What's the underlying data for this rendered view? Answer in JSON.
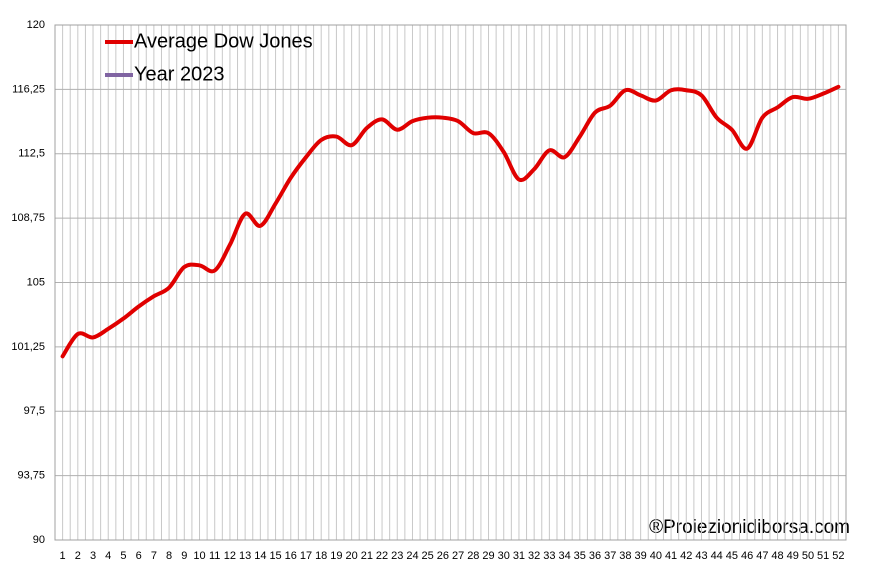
{
  "chart_data": {
    "type": "line",
    "categories": [
      "1",
      "2",
      "3",
      "4",
      "5",
      "6",
      "7",
      "8",
      "9",
      "10",
      "11",
      "12",
      "13",
      "14",
      "15",
      "16",
      "17",
      "18",
      "19",
      "20",
      "21",
      "22",
      "23",
      "24",
      "25",
      "26",
      "27",
      "28",
      "29",
      "30",
      "31",
      "32",
      "33",
      "34",
      "35",
      "36",
      "37",
      "38",
      "39",
      "40",
      "41",
      "42",
      "43",
      "44",
      "45",
      "46",
      "47",
      "48",
      "49",
      "50",
      "51",
      "52"
    ],
    "series": [
      {
        "name": "Average Dow Jones",
        "color": "#e00000",
        "values": [
          100.7,
          102.0,
          101.8,
          102.3,
          102.9,
          103.6,
          104.2,
          104.7,
          105.9,
          106.0,
          105.7,
          107.2,
          109.0,
          108.3,
          109.6,
          111.1,
          112.3,
          113.3,
          113.5,
          113.0,
          114.0,
          114.5,
          113.9,
          114.4,
          114.6,
          114.6,
          114.4,
          113.7,
          113.7,
          112.6,
          111.0,
          111.6,
          112.7,
          112.3,
          113.5,
          114.9,
          115.3,
          116.2,
          115.9,
          115.6,
          116.2,
          116.2,
          115.9,
          114.6,
          113.9,
          112.8,
          114.6,
          115.2,
          115.8,
          115.7,
          116.0,
          116.4
        ]
      },
      {
        "name": "Year 2023",
        "color": "#8064a2",
        "values": [
          null,
          null,
          null,
          null,
          null,
          null,
          null,
          null,
          null,
          null,
          null,
          null,
          null,
          null,
          null,
          null,
          null,
          null,
          null,
          null,
          null,
          null,
          null,
          null,
          null,
          null,
          null,
          null,
          null,
          null,
          null,
          null,
          null,
          null,
          null,
          null,
          null,
          null,
          null,
          null,
          null,
          null,
          null,
          null,
          null,
          null,
          null,
          null,
          null,
          null,
          null,
          null
        ]
      }
    ],
    "ylim": [
      90,
      120
    ],
    "yticks": [
      90,
      {
        "value": 93.75,
        "label": "93,75"
      },
      {
        "value": 97.5,
        "label": "97,5"
      },
      {
        "value": 101.25,
        "label": "101,25"
      },
      105,
      {
        "value": 108.75,
        "label": "108,75"
      },
      {
        "value": 112.5,
        "label": "112,5"
      },
      {
        "value": 116.25,
        "label": "116,25"
      },
      120
    ],
    "grid": true,
    "legend": "top-left",
    "annotation": "®Proiezionidiborsa.com"
  }
}
